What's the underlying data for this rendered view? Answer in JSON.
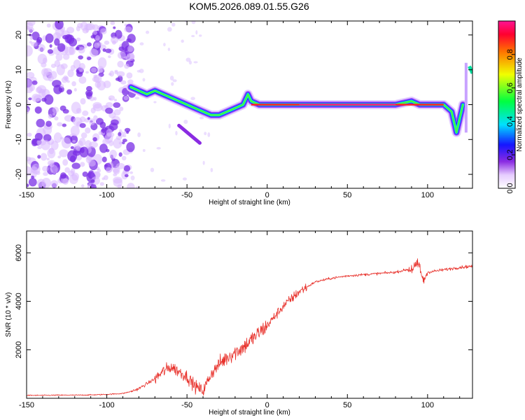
{
  "title": "KOM5.2026.089.01.55.G26",
  "chart_data": [
    {
      "type": "heatmap",
      "xlabel": "Height of straight line (km)",
      "ylabel": "Frequency (Hz)",
      "xlim": [
        -150,
        128
      ],
      "ylim": [
        -24,
        24
      ],
      "xticks": [
        -150,
        -100,
        -50,
        0,
        50,
        100
      ],
      "yticks": [
        -20,
        -10,
        0,
        10,
        20
      ],
      "colorbar": {
        "label": "Normalized spectral amplitude",
        "range": [
          0,
          1
        ],
        "ticks": [
          0.0,
          0.2,
          0.4,
          0.6,
          0.8
        ]
      },
      "ridge": {
        "x": [
          -85,
          -80,
          -75,
          -70,
          -65,
          -60,
          -55,
          -50,
          -45,
          -40,
          -35,
          -30,
          -25,
          -20,
          -15,
          -12,
          -10,
          -5,
          0,
          10,
          20,
          40,
          60,
          80,
          90,
          95,
          100,
          110,
          115,
          118,
          122
        ],
        "y": [
          5,
          4,
          3,
          4,
          3,
          2,
          1,
          0,
          -1,
          -2,
          -3,
          -3,
          -2,
          -1,
          0,
          3,
          1,
          0,
          0,
          0,
          0,
          0,
          0,
          0,
          1,
          0,
          0,
          0,
          -2,
          -8,
          0
        ]
      }
    },
    {
      "type": "line",
      "xlabel": "Height of straight line (km)",
      "ylabel": "SNR (10 * v/v)",
      "xlim": [
        -150,
        128
      ],
      "ylim": [
        0,
        6900
      ],
      "xticks": [
        -150,
        -100,
        -50,
        0,
        50,
        100
      ],
      "yticks": [
        2000,
        4000,
        6000
      ],
      "series": [
        {
          "color": "#e8322c",
          "x": [
            -150,
            -140,
            -130,
            -120,
            -110,
            -100,
            -90,
            -85,
            -80,
            -75,
            -70,
            -65,
            -60,
            -55,
            -50,
            -45,
            -40,
            -35,
            -30,
            -25,
            -20,
            -15,
            -10,
            -5,
            0,
            5,
            10,
            15,
            20,
            25,
            30,
            40,
            50,
            60,
            70,
            80,
            90,
            95,
            97,
            100,
            105,
            110,
            115,
            120,
            128
          ],
          "y": [
            120,
            120,
            130,
            130,
            140,
            160,
            200,
            280,
            400,
            600,
            800,
            1100,
            1300,
            1100,
            900,
            500,
            300,
            1000,
            1400,
            1700,
            1900,
            2100,
            2400,
            2700,
            3000,
            3400,
            3800,
            4100,
            4400,
            4600,
            4800,
            4950,
            5050,
            5100,
            5150,
            5200,
            5350,
            5500,
            4800,
            5200,
            5250,
            5300,
            5350,
            5400,
            5450
          ]
        }
      ]
    }
  ]
}
